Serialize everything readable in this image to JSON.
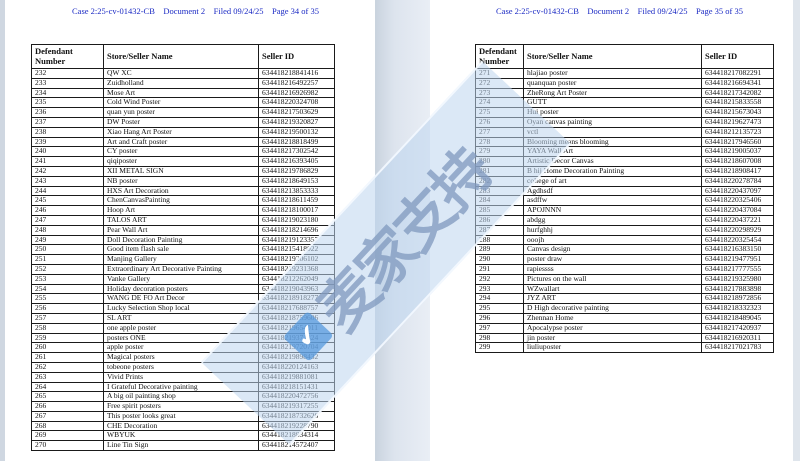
{
  "accent_colors": {
    "header_text": "#1b2ac4",
    "watermark_ribbon": "#bdd6ee",
    "watermark_text": "#7f98bd",
    "watermark_check": "#4e96dc",
    "table_border": "#1a1a1a"
  },
  "watermark": {
    "text": "麦家支持",
    "check_icon": "✔"
  },
  "pages": [
    {
      "name": "page-34",
      "header": "Case 2:25-cv-01432-CB    Document 2    Filed 09/24/25    Page 34 of 35",
      "table": {
        "columns": [
          "Defendant Number",
          "Store/Seller Name",
          "Seller ID"
        ],
        "rows": [
          [
            "232",
            "QW XC",
            "634418218841416"
          ],
          [
            "233",
            "Zuidholland",
            "634418216492257"
          ],
          [
            "234",
            "Mose Art",
            "634418216926982"
          ],
          [
            "235",
            "Cold Wind Poster",
            "634418220324708"
          ],
          [
            "236",
            "quan yun poster",
            "634418217503629"
          ],
          [
            "237",
            "DW Poster",
            "634418219320827"
          ],
          [
            "238",
            "Xiao Hang Art Poster",
            "634418219500132"
          ],
          [
            "239",
            "Art and Craft poster",
            "634418218818499"
          ],
          [
            "240",
            "CY poster",
            "634418217302542"
          ],
          [
            "241",
            "qiqiposter",
            "634418216393405"
          ],
          [
            "242",
            "XII METAL SIGN",
            "634418219786829"
          ],
          [
            "243",
            "NB poster",
            "634418218649153"
          ],
          [
            "244",
            "HXS Art Decoration",
            "634418213853333"
          ],
          [
            "245",
            "ChenCanvasPainting",
            "634418218611459"
          ],
          [
            "246",
            "Hoop Art",
            "634418218100017"
          ],
          [
            "247",
            "TALOS ART",
            "634418219023180"
          ],
          [
            "248",
            "Pear Wall Art",
            "634418218214696"
          ],
          [
            "249",
            "Doll Decoration Painting",
            "634418219123357"
          ],
          [
            "250",
            "Good item flash sale",
            "634418215418022"
          ],
          [
            "251",
            "Manjing Gallery",
            "634418219206102"
          ],
          [
            "252",
            "Extraordinary Art Decorative Painting",
            "634418219231368"
          ],
          [
            "253",
            "Vanke Gallery",
            "634418212262049"
          ],
          [
            "254",
            "Holiday decoration posters",
            "634418219043963"
          ],
          [
            "255",
            "WANG DE FO Art Decor",
            "634418218918277"
          ],
          [
            "256",
            "Lucky Selection Shop local",
            "634418217688757"
          ],
          [
            "257",
            "SL ART",
            "634418218759606"
          ],
          [
            "258",
            "one apple poster",
            "634418219654011"
          ],
          [
            "259",
            "posters ONE",
            "634418219371824"
          ],
          [
            "260",
            "apple poster",
            "634418219720704"
          ],
          [
            "261",
            "Magical posters",
            "634418219898432"
          ],
          [
            "262",
            "tobeone posters",
            "634418220124163"
          ],
          [
            "263",
            "Vivid Prints",
            "634418219881081"
          ],
          [
            "264",
            "I Grateful Decorative painting",
            "634418218151431"
          ],
          [
            "265",
            "A big oil painting shop",
            "634418220472756"
          ],
          [
            "266",
            "Free spirit posters",
            "634418219317255"
          ],
          [
            "267",
            "This poster looks great",
            "634418218732626"
          ],
          [
            "268",
            "CHE Decoration",
            "634418219228790"
          ],
          [
            "269",
            "WBYUK",
            "634418218834314"
          ],
          [
            "270",
            "Line Tin Sign",
            "634418214572407"
          ]
        ]
      }
    },
    {
      "name": "page-35",
      "header": "Case 2:25-cv-01432-CB    Document 2    Filed 09/24/25    Page 35 of 35",
      "table": {
        "columns": [
          "Defendant Number",
          "Store/Seller Name",
          "Seller ID"
        ],
        "rows": [
          [
            "271",
            "hlajiao poster",
            "634418217082291"
          ],
          [
            "272",
            "quanquan poster",
            "634418216694341"
          ],
          [
            "273",
            "ZheRong Art Poster",
            "634418217342082"
          ],
          [
            "274",
            "GUTT",
            "634418215833558"
          ],
          [
            "275",
            "Hui poster",
            "634418215673043"
          ],
          [
            "276",
            "Oyan canvas painting",
            "634418219627473"
          ],
          [
            "277",
            "vctl",
            "634418212135723"
          ],
          [
            "278",
            "Blooming means blooming",
            "634418217946560"
          ],
          [
            "279",
            "YAYA Wall Art",
            "634418219005037"
          ],
          [
            "280",
            "Artistic Decor Canvas",
            "634418218607008"
          ],
          [
            "281",
            "B hij Home Decoration Painting",
            "634418218908417"
          ],
          [
            "282",
            "college of art",
            "634418220278784"
          ],
          [
            "283",
            "Agdhsdf",
            "634418220437097"
          ],
          [
            "284",
            "asdffw",
            "634418220325406"
          ],
          [
            "285",
            "APOJNNN",
            "634418220437084"
          ],
          [
            "286",
            "abdgg",
            "634418220437221"
          ],
          [
            "287",
            "hurfghhj",
            "634418220298929"
          ],
          [
            "288",
            "ooojh",
            "634418220325454"
          ],
          [
            "289",
            "Canvas design",
            "634418216383150"
          ],
          [
            "290",
            "poster draw",
            "634418219477951"
          ],
          [
            "291",
            "rapiessss",
            "634418217777555"
          ],
          [
            "292",
            "Pictures on the wall",
            "634418219325980"
          ],
          [
            "293",
            "WZwallart",
            "634418217883898"
          ],
          [
            "294",
            "JYZ ART",
            "634418218972856"
          ],
          [
            "295",
            "D High decorative painting",
            "634418218332323"
          ],
          [
            "296",
            "Zhennan Home",
            "634418218489045"
          ],
          [
            "297",
            "Apocalypse poster",
            "634418217420937"
          ],
          [
            "298",
            "jin poster",
            "634418216920311"
          ],
          [
            "299",
            "liuliuposter",
            "634418217021783"
          ]
        ]
      }
    }
  ]
}
